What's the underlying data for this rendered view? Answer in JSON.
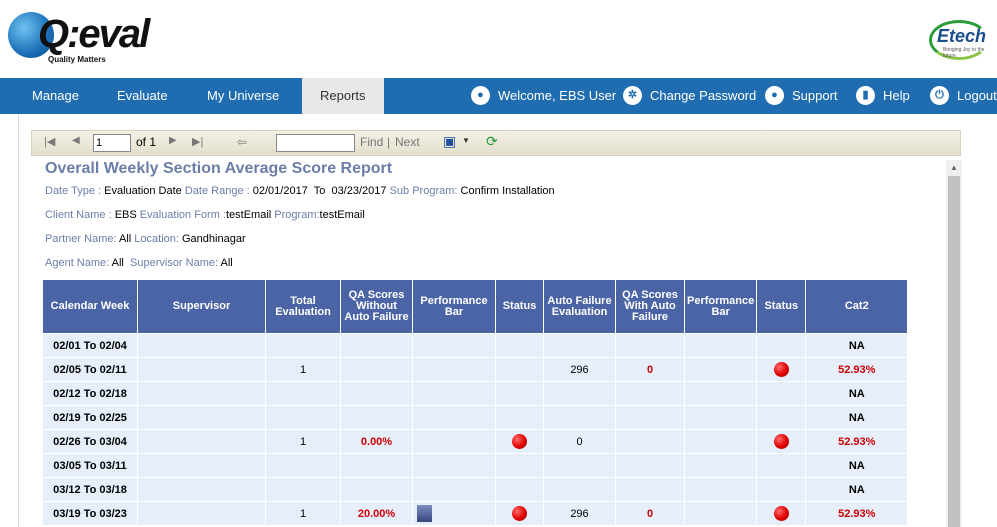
{
  "header": {
    "logo_text": "Q:eval",
    "logo_tagline": "Quality Matters",
    "partner_logo": "Etech",
    "partner_tagline": "Bringing Joy to the future"
  },
  "nav": {
    "items": [
      {
        "label": "Manage"
      },
      {
        "label": "Evaluate"
      },
      {
        "label": "My Universe"
      },
      {
        "label": "Reports",
        "active": true
      }
    ],
    "right": [
      {
        "label": "Welcome, EBS User",
        "icon": "user-icon"
      },
      {
        "label": "Change Password",
        "icon": "gear-icon"
      },
      {
        "label": "Support",
        "icon": "support-icon"
      },
      {
        "label": "Help",
        "icon": "book-icon"
      },
      {
        "label": "Logout",
        "icon": "power-icon"
      }
    ]
  },
  "toolbar": {
    "page_value": "1",
    "page_of": "of 1",
    "find_label": "Find",
    "separator": "|",
    "next_label": "Next",
    "find_value": ""
  },
  "report": {
    "title": "Overall Weekly Section Average Score Report",
    "meta": {
      "date_type_label": "Date Type :",
      "date_type": "Evaluation Date",
      "date_range_label": "Date Range :",
      "date_range": "02/01/2017  To  03/23/2017",
      "sub_program_label": "Sub Program:",
      "sub_program": "Confirm Installation",
      "client_label": "Client Name :",
      "client": "EBS",
      "form_label": "Evaluation Form :",
      "form": "testEmail",
      "program_label": "Program:",
      "program": "testEmail",
      "partner_label": "Partner Name:",
      "partner": "All",
      "location_label": "Location:",
      "location": "Gandhinagar",
      "agent_label": "Agent Name:",
      "agent": "All",
      "supervisor_label": "Supervisor Name:",
      "supervisor": "All"
    },
    "columns": [
      "Calendar Week",
      "Supervisor",
      "Total Evaluation",
      "QA Scores Without Auto Failure",
      "Performance Bar",
      "Status",
      "Auto Failure Evaluation",
      "QA Scores With Auto Failure",
      "Performance Bar",
      "Status",
      "Cat2"
    ],
    "rows": [
      {
        "week": "02/01  To  02/04",
        "total": "",
        "qa_without": "",
        "perf1_pct": null,
        "status1": false,
        "auto_fail": "",
        "qa_with": "",
        "status2": false,
        "cat2": "NA",
        "cat2_red": false
      },
      {
        "week": "02/05  To  02/11",
        "total": "1",
        "qa_without": "",
        "perf1_pct": null,
        "status1": false,
        "auto_fail": "296",
        "qa_with": "0",
        "status2": true,
        "cat2": "52.93%",
        "cat2_red": true
      },
      {
        "week": "02/12  To  02/18",
        "total": "",
        "qa_without": "",
        "perf1_pct": null,
        "status1": false,
        "auto_fail": "",
        "qa_with": "",
        "status2": false,
        "cat2": "NA",
        "cat2_red": false
      },
      {
        "week": "02/19  To  02/25",
        "total": "",
        "qa_without": "",
        "perf1_pct": null,
        "status1": false,
        "auto_fail": "",
        "qa_with": "",
        "status2": false,
        "cat2": "NA",
        "cat2_red": false
      },
      {
        "week": "02/26  To  03/04",
        "total": "1",
        "qa_without": "0.00%",
        "perf1_pct": null,
        "status1": true,
        "auto_fail": "0",
        "qa_with": "",
        "status2": true,
        "cat2": "52.93%",
        "cat2_red": true
      },
      {
        "week": "03/05  To  03/11",
        "total": "",
        "qa_without": "",
        "perf1_pct": null,
        "status1": false,
        "auto_fail": "",
        "qa_with": "",
        "status2": false,
        "cat2": "NA",
        "cat2_red": false
      },
      {
        "week": "03/12  To  03/18",
        "total": "",
        "qa_without": "",
        "perf1_pct": null,
        "status1": false,
        "auto_fail": "",
        "qa_with": "",
        "status2": false,
        "cat2": "NA",
        "cat2_red": false
      },
      {
        "week": "03/19  To  03/23",
        "total": "1",
        "qa_without": "20.00%",
        "perf1_pct": 20,
        "status1": true,
        "auto_fail": "296",
        "qa_with": "0",
        "status2": true,
        "cat2": "52.93%",
        "cat2_red": true
      }
    ]
  }
}
